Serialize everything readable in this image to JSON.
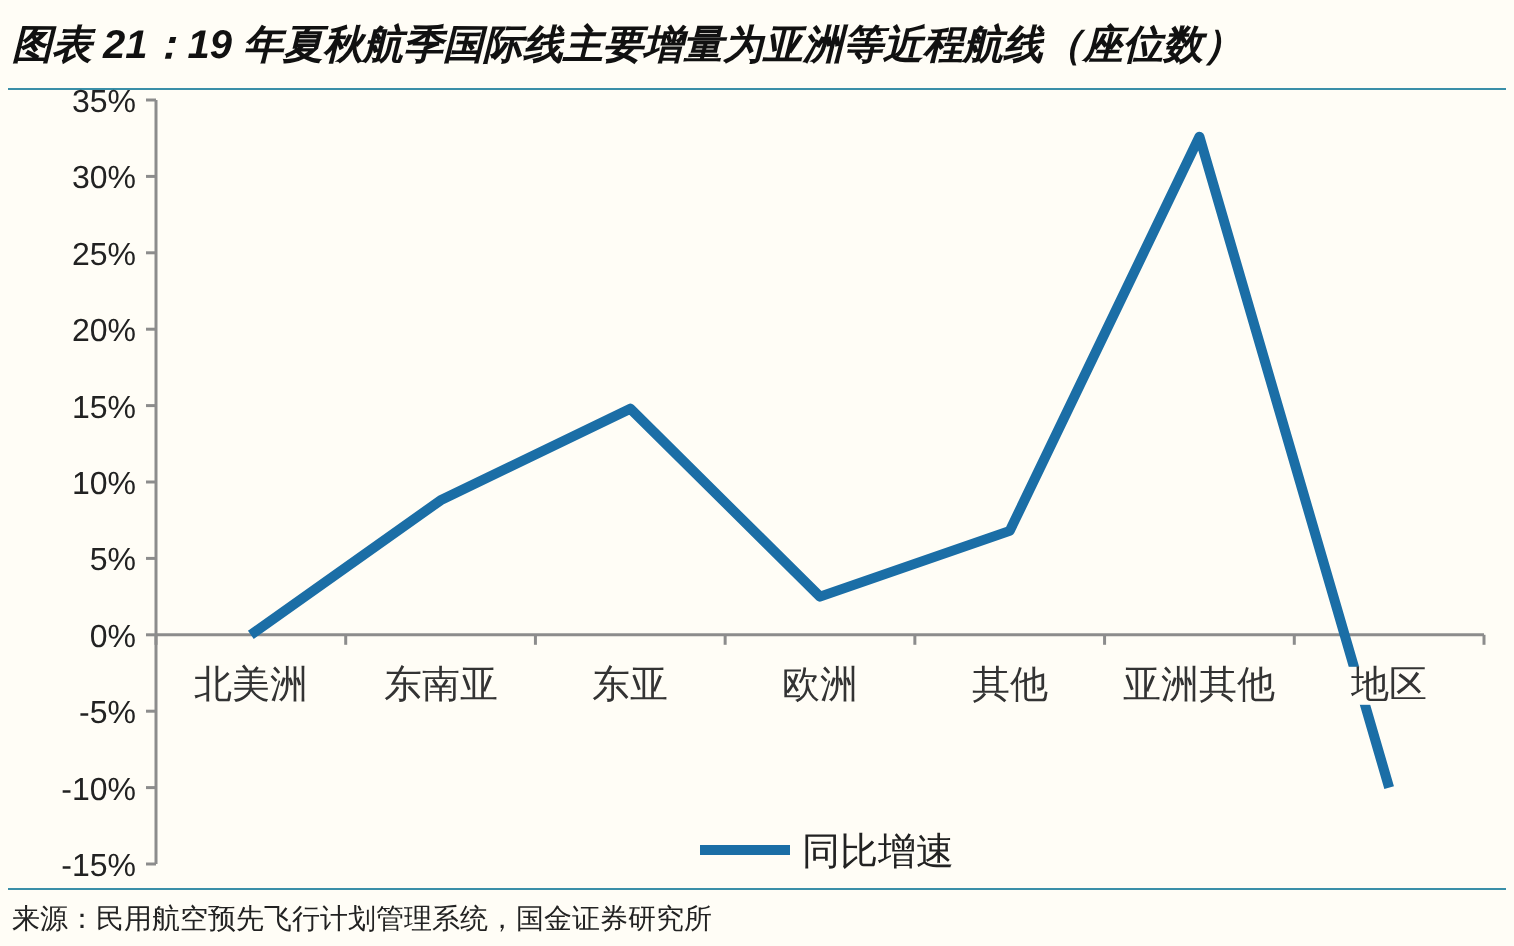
{
  "chart_data": {
    "type": "line",
    "title": "图表 21：19 年夏秋航季国际线主要增量为亚洲等近程航线（座位数）",
    "categories": [
      "北美洲",
      "东南亚",
      "东亚",
      "欧洲",
      "其他",
      "亚洲其他",
      "地区"
    ],
    "series": [
      {
        "name": "同比增速",
        "color": "#1b6ea6",
        "values": [
          0,
          8.8,
          14.8,
          2.5,
          6.8,
          32.6,
          -10
        ]
      }
    ],
    "ylim": [
      -15,
      35
    ],
    "yticks": [
      {
        "value": -15,
        "label": "-15%"
      },
      {
        "value": -10,
        "label": "-10%"
      },
      {
        "value": -5,
        "label": "-5%"
      },
      {
        "value": 0,
        "label": "0%"
      },
      {
        "value": 5,
        "label": "5%"
      },
      {
        "value": 10,
        "label": "10%"
      },
      {
        "value": 15,
        "label": "15%"
      },
      {
        "value": 20,
        "label": "20%"
      },
      {
        "value": 25,
        "label": "25%"
      },
      {
        "value": 30,
        "label": "30%"
      },
      {
        "value": 35,
        "label": "35%"
      }
    ],
    "grid": false,
    "legend": "bottom",
    "marker": "none",
    "line_style": "solid",
    "annotations": [
      "来源：民用航空预先飞行计划管理系统，国金证券研究所"
    ]
  }
}
